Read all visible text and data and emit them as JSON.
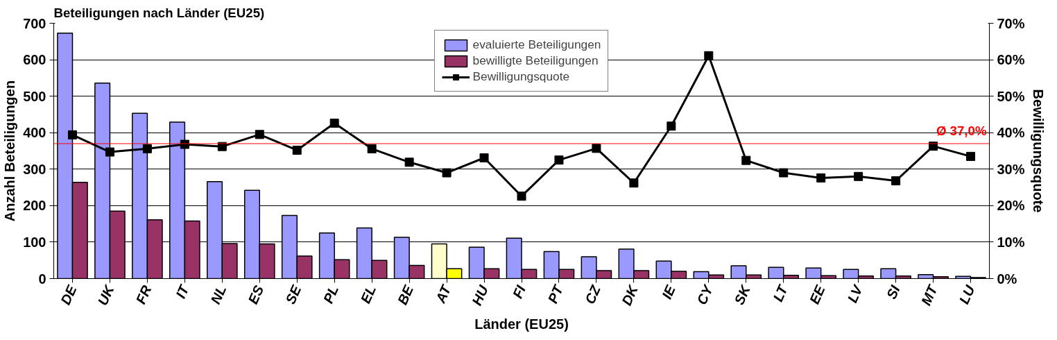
{
  "chart_data": {
    "type": "bar",
    "title": "Beteiligungen nach Länder (EU25)",
    "xlabel": "Länder (EU25)",
    "ylabel": "Anzahl Beteiligungen",
    "y2label": "Bewilligungsquote",
    "categories": [
      "DE",
      "UK",
      "FR",
      "IT",
      "NL",
      "ES",
      "SE",
      "PL",
      "EL",
      "BE",
      "AT",
      "HU",
      "FI",
      "PT",
      "CZ",
      "DK",
      "IE",
      "CY",
      "SK",
      "LT",
      "EE",
      "LV",
      "SI",
      "MT",
      "LU"
    ],
    "series": [
      {
        "name": "evaluierte Beteiligungen",
        "color": "#9999ff",
        "colors": [
          null,
          null,
          null,
          null,
          null,
          null,
          null,
          null,
          null,
          null,
          "#ffffcc",
          null,
          null,
          null,
          null,
          null,
          null,
          null,
          null,
          null,
          null,
          null,
          null,
          null,
          null
        ],
        "values": [
          673,
          536,
          453,
          429,
          266,
          242,
          173,
          125,
          139,
          113,
          95,
          86,
          111,
          74,
          60,
          81,
          48,
          19,
          35,
          31,
          29,
          25,
          27,
          11,
          6
        ]
      },
      {
        "name": "bewilligte Beteiligungen",
        "color": "#993366",
        "colors": [
          null,
          null,
          null,
          null,
          null,
          null,
          null,
          null,
          null,
          null,
          "#ffff00",
          null,
          null,
          null,
          null,
          null,
          null,
          null,
          null,
          null,
          null,
          null,
          null,
          null,
          null
        ],
        "values": [
          264,
          185,
          161,
          158,
          96,
          95,
          62,
          52,
          50,
          36,
          27,
          27,
          25,
          25,
          22,
          22,
          20,
          10,
          10,
          9,
          8,
          7,
          7,
          5,
          3
        ]
      },
      {
        "name": "Bewilligungsquote",
        "type": "line",
        "axis": "y2",
        "color": "#000000",
        "values": [
          39.4,
          34.7,
          35.6,
          36.8,
          36.2,
          39.5,
          35.2,
          42.6,
          35.6,
          31.9,
          29.0,
          33.1,
          22.6,
          32.5,
          35.7,
          26.2,
          41.8,
          61.1,
          32.4,
          29.0,
          27.6,
          28.0,
          26.8,
          36.3,
          33.5
        ]
      }
    ],
    "ylim": [
      0,
      700
    ],
    "yticks": [
      0,
      100,
      200,
      300,
      400,
      500,
      600,
      700
    ],
    "y2lim": [
      0,
      70
    ],
    "y2ticks": [
      {
        "value": 0,
        "label": "0%"
      },
      {
        "value": 10,
        "label": "10%"
      },
      {
        "value": 20,
        "label": "20%"
      },
      {
        "value": 30,
        "label": "30%"
      },
      {
        "value": 40,
        "label": "40%"
      },
      {
        "value": 50,
        "label": "50%"
      },
      {
        "value": 60,
        "label": "60%"
      },
      {
        "value": 70,
        "label": "70%"
      }
    ],
    "ref_lines": [
      {
        "axis": "y2",
        "value": 37.0,
        "label": "Ø 37,0%",
        "color": "#ff0000"
      }
    ],
    "grid": "y",
    "legend": "top",
    "marker": "square"
  }
}
